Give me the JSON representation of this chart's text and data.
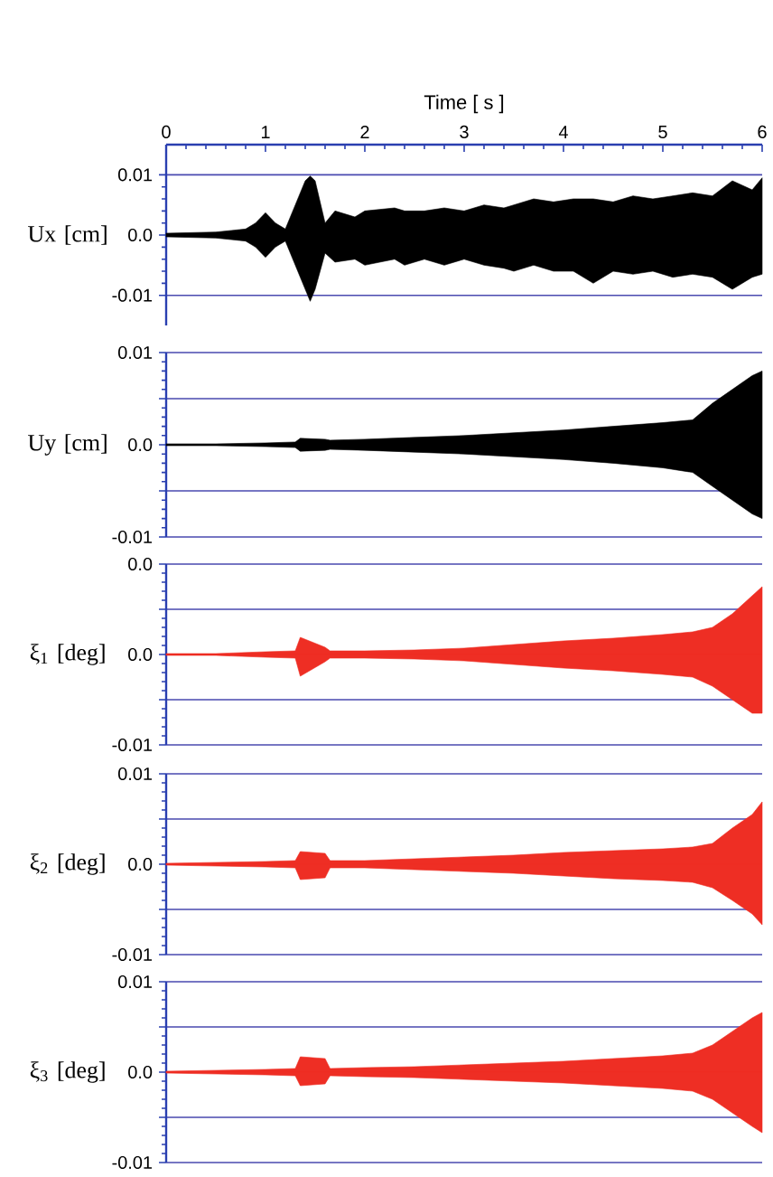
{
  "chart_data": [
    {
      "type": "area",
      "ylabel": "Ux [cm]",
      "xlabel": "Time [ s ]",
      "xlim": [
        0,
        6
      ],
      "xticks": [
        0,
        1,
        2,
        3,
        4,
        5,
        6
      ],
      "ylim": [
        -0.015,
        0.015
      ],
      "yticks": [
        {
          "value": -0.01,
          "label": "-0.01"
        },
        {
          "value": 0,
          "label": "0.0"
        },
        {
          "value": 0.01,
          "label": "0.01"
        }
      ],
      "grid": "y",
      "x": [
        0,
        0.5,
        0.8,
        0.9,
        1.0,
        1.1,
        1.2,
        1.3,
        1.4,
        1.45,
        1.5,
        1.6,
        1.7,
        1.9,
        2.0,
        2.3,
        2.4,
        2.6,
        2.8,
        3.0,
        3.2,
        3.4,
        3.5,
        3.7,
        3.9,
        4.1,
        4.3,
        4.5,
        4.7,
        4.9,
        5.1,
        5.3,
        5.5,
        5.7,
        5.9,
        6.0
      ],
      "series": [
        {
          "color": "#000000",
          "values": [
            0.0003,
            0.0005,
            0.001,
            0.002,
            0.0037,
            0.002,
            0.001,
            0.005,
            0.009,
            0.0098,
            0.009,
            0.002,
            0.004,
            0.003,
            0.004,
            0.0045,
            0.004,
            0.004,
            0.0045,
            0.004,
            0.005,
            0.0045,
            0.005,
            0.006,
            0.0055,
            0.006,
            0.006,
            0.0055,
            0.0065,
            0.006,
            0.0065,
            0.007,
            0.0065,
            0.009,
            0.0075,
            0.0095
          ]
        },
        {
          "color": "#000000",
          "values": [
            -0.0003,
            -0.0005,
            -0.001,
            -0.002,
            -0.0037,
            -0.002,
            -0.001,
            -0.005,
            -0.009,
            -0.011,
            -0.009,
            -0.003,
            -0.0045,
            -0.004,
            -0.005,
            -0.004,
            -0.005,
            -0.004,
            -0.005,
            -0.004,
            -0.005,
            -0.0055,
            -0.006,
            -0.005,
            -0.006,
            -0.006,
            -0.008,
            -0.006,
            -0.0065,
            -0.006,
            -0.007,
            -0.0065,
            -0.007,
            -0.009,
            -0.007,
            -0.0065
          ]
        }
      ]
    },
    {
      "type": "area",
      "ylabel": "Uy [cm]",
      "xlim": [
        0,
        6
      ],
      "tick_labels": "y",
      "ylim": [
        -0.01,
        0.01
      ],
      "yticks": [
        {
          "value": -0.01,
          "label": "-0.01"
        },
        {
          "value": -0.005,
          "label": null
        },
        {
          "value": 0,
          "label": "0.0"
        },
        {
          "value": 0.005,
          "label": null
        },
        {
          "value": 0.01,
          "label": "0.01"
        }
      ],
      "grid": "y",
      "x": [
        0,
        0.5,
        1.0,
        1.3,
        1.35,
        1.6,
        1.65,
        2,
        2.5,
        3,
        3.5,
        4,
        4.5,
        5,
        5.3,
        5.5,
        5.7,
        5.9,
        6.0
      ],
      "series": [
        {
          "color": "#000000",
          "values": [
            0.0001,
            0.0001,
            0.0002,
            0.0003,
            0.0007,
            0.0006,
            0.0005,
            0.0006,
            0.0008,
            0.001,
            0.0013,
            0.0016,
            0.002,
            0.0024,
            0.0027,
            0.0045,
            0.006,
            0.0075,
            0.008
          ]
        },
        {
          "color": "#000000",
          "values": [
            -0.0001,
            -0.0001,
            -0.0002,
            -0.0003,
            -0.0007,
            -0.0006,
            -0.0005,
            -0.0006,
            -0.0008,
            -0.001,
            -0.0013,
            -0.0016,
            -0.002,
            -0.0025,
            -0.003,
            -0.0045,
            -0.006,
            -0.0075,
            -0.008
          ]
        }
      ]
    },
    {
      "type": "area",
      "ylabel": "ξ$_{1}$ [deg]",
      "xlim": [
        0,
        6
      ],
      "tick_labels": "y",
      "ylim": [
        -0.01,
        0.01
      ],
      "yticks": [
        {
          "value": -0.01,
          "label": "-0.01"
        },
        {
          "value": -0.005,
          "label": null
        },
        {
          "value": 0,
          "label": "0.0"
        },
        {
          "value": 0.005,
          "label": null
        },
        {
          "value": 0.01,
          "label": "0.0"
        }
      ],
      "grid": "y",
      "x": [
        0,
        0.5,
        1.0,
        1.3,
        1.35,
        1.6,
        1.65,
        2,
        2.5,
        3,
        3.5,
        4,
        4.5,
        5,
        5.3,
        5.5,
        5.7,
        5.9,
        6.0
      ],
      "series": [
        {
          "color": "#ee2e24",
          "values": [
            0.0001,
            0.0001,
            0.0003,
            0.0004,
            0.0019,
            0.0008,
            0.0004,
            0.0004,
            0.0005,
            0.0007,
            0.0011,
            0.0015,
            0.0018,
            0.0022,
            0.0025,
            0.003,
            0.0045,
            0.0065,
            0.0075
          ]
        },
        {
          "color": "#ee2e24",
          "values": [
            -0.0001,
            -0.0001,
            -0.0003,
            -0.0004,
            -0.0024,
            -0.0008,
            -0.0004,
            -0.0004,
            -0.0005,
            -0.0007,
            -0.0011,
            -0.0015,
            -0.0018,
            -0.0022,
            -0.0025,
            -0.0035,
            -0.005,
            -0.0065,
            -0.0065
          ]
        }
      ]
    },
    {
      "type": "area",
      "ylabel": "ξ$_{2}$ [deg]",
      "xlim": [
        0,
        6
      ],
      "tick_labels": "y",
      "ylim": [
        -0.01,
        0.01
      ],
      "yticks": [
        {
          "value": -0.01,
          "label": "-0.01"
        },
        {
          "value": -0.005,
          "label": null
        },
        {
          "value": 0,
          "label": "0.0"
        },
        {
          "value": 0.005,
          "label": null
        },
        {
          "value": 0.01,
          "label": "0.01"
        }
      ],
      "grid": "y",
      "x": [
        0,
        0.5,
        1.0,
        1.3,
        1.35,
        1.6,
        1.65,
        2,
        2.5,
        3,
        3.5,
        4,
        4.5,
        5,
        5.3,
        5.5,
        5.7,
        5.9,
        6.0
      ],
      "series": [
        {
          "color": "#ee2e24",
          "values": [
            0.0001,
            0.0002,
            0.0003,
            0.0004,
            0.0014,
            0.0012,
            0.0004,
            0.0004,
            0.0006,
            0.0008,
            0.001,
            0.0013,
            0.0015,
            0.0017,
            0.0019,
            0.0023,
            0.004,
            0.0055,
            0.0069
          ]
        },
        {
          "color": "#ee2e24",
          "values": [
            -0.0001,
            -0.0002,
            -0.0003,
            -0.0004,
            -0.0017,
            -0.0015,
            -0.0004,
            -0.0004,
            -0.0006,
            -0.0008,
            -0.001,
            -0.0013,
            -0.0016,
            -0.0018,
            -0.002,
            -0.0026,
            -0.004,
            -0.0055,
            -0.0067
          ]
        }
      ]
    },
    {
      "type": "area",
      "ylabel": "ξ$_{3}$ [deg]",
      "xlim": [
        0,
        6
      ],
      "tick_labels": "y",
      "ylim": [
        -0.01,
        0.01
      ],
      "yticks": [
        {
          "value": -0.01,
          "label": "-0.01"
        },
        {
          "value": -0.005,
          "label": null
        },
        {
          "value": 0,
          "label": "0.0"
        },
        {
          "value": 0.005,
          "label": null
        },
        {
          "value": 0.01,
          "label": "0.01"
        }
      ],
      "grid": "y",
      "x": [
        0,
        0.5,
        1.0,
        1.3,
        1.35,
        1.6,
        1.65,
        2,
        2.5,
        3,
        3.5,
        4,
        4.5,
        5,
        5.3,
        5.5,
        5.7,
        5.9,
        6.0
      ],
      "series": [
        {
          "color": "#ee2e24",
          "values": [
            0.0001,
            0.0002,
            0.0003,
            0.0004,
            0.0017,
            0.0015,
            0.0004,
            0.0005,
            0.0006,
            0.0008,
            0.001,
            0.0012,
            0.0015,
            0.0018,
            0.0021,
            0.003,
            0.0045,
            0.006,
            0.0066
          ]
        },
        {
          "color": "#ee2e24",
          "values": [
            -0.0001,
            -0.0002,
            -0.0003,
            -0.0004,
            -0.0015,
            -0.0013,
            -0.0004,
            -0.0005,
            -0.0006,
            -0.0008,
            -0.001,
            -0.0012,
            -0.0015,
            -0.0018,
            -0.0021,
            -0.003,
            -0.0045,
            -0.006,
            -0.0067
          ]
        }
      ]
    }
  ]
}
